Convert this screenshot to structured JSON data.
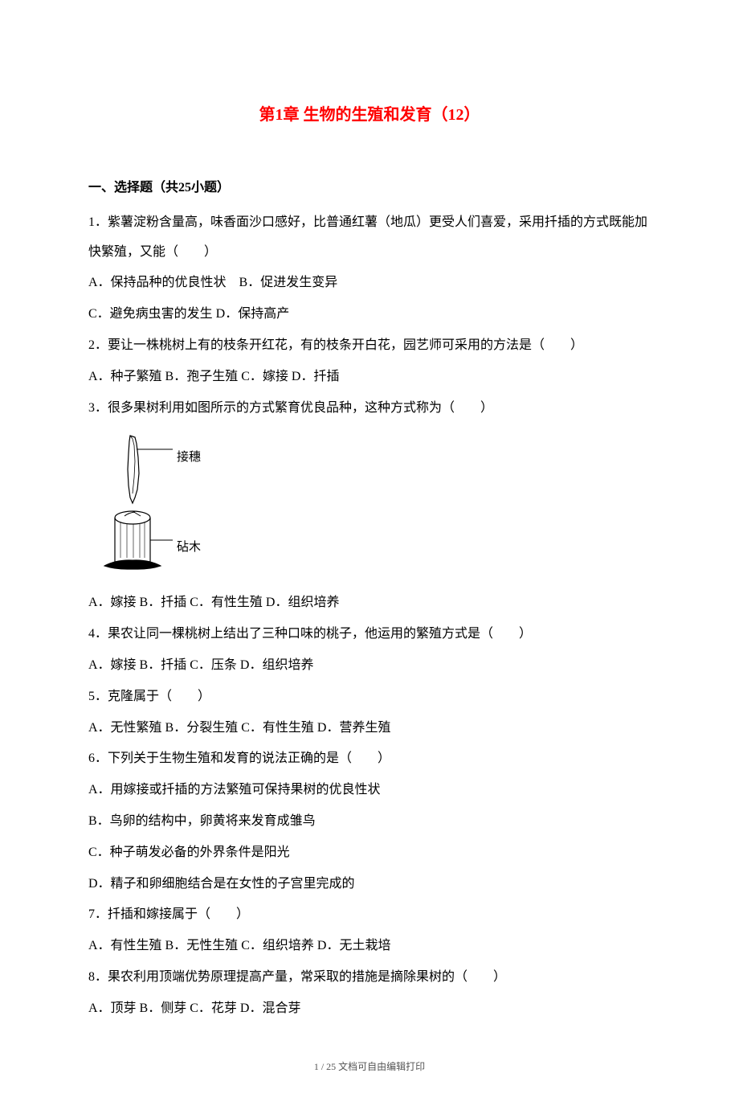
{
  "title": "第1章 生物的生殖和发育（12）",
  "section_header": "一、选择题（共25小题）",
  "questions": [
    {
      "text": "1．紫薯淀粉含量高，味香面沙口感好，比普通红薯（地瓜）更受人们喜爱，采用扦插的方式既能加快繁殖，又能（　　）",
      "option_lines": [
        "A．保持品种的优良性状　B．促进发生变异",
        "C．避免病虫害的发生 D．保持高产"
      ]
    },
    {
      "text": "2．要让一株桃树上有的枝条开红花，有的枝条开白花，园艺师可采用的方法是（　　）",
      "option_lines": [
        "A．种子繁殖 B．孢子生殖 C．嫁接 D．扦插"
      ]
    },
    {
      "text": "3．很多果树利用如图所示的方式繁育优良品种，这种方式称为（　　）",
      "has_diagram": true,
      "option_lines": [
        "A．嫁接 B．扦插 C．有性生殖 D．组织培养"
      ]
    },
    {
      "text": "4．果农让同一棵桃树上结出了三种口味的桃子，他运用的繁殖方式是（　　）",
      "option_lines": [
        "A．嫁接 B．扦插 C．压条 D．组织培养"
      ]
    },
    {
      "text": "5．克隆属于（　　）",
      "option_lines": [
        "A．无性繁殖 B．分裂生殖 C．有性生殖 D．营养生殖"
      ]
    },
    {
      "text": "6．下列关于生物生殖和发育的说法正确的是（　　）",
      "option_lines": [
        "A．用嫁接或扦插的方法繁殖可保持果树的优良性状",
        "B．鸟卵的结构中，卵黄将来发育成雏鸟",
        "C．种子萌发必备的外界条件是阳光",
        "D．精子和卵细胞结合是在女性的子宫里完成的"
      ]
    },
    {
      "text": "7．扦插和嫁接属于（　　）",
      "option_lines": [
        "A．有性生殖 B．无性生殖 C．组织培养 D．无土栽培"
      ]
    },
    {
      "text": "8．果农利用顶端优势原理提高产量，常采取的措施是摘除果树的（　　）",
      "option_lines": [
        "A．顶芽 B．侧芽 C．花芽 D．混合芽"
      ]
    }
  ],
  "diagram": {
    "label_top": "接穗",
    "label_bottom": "砧木"
  },
  "footer": "1 / 25 文档可自由编辑打印"
}
